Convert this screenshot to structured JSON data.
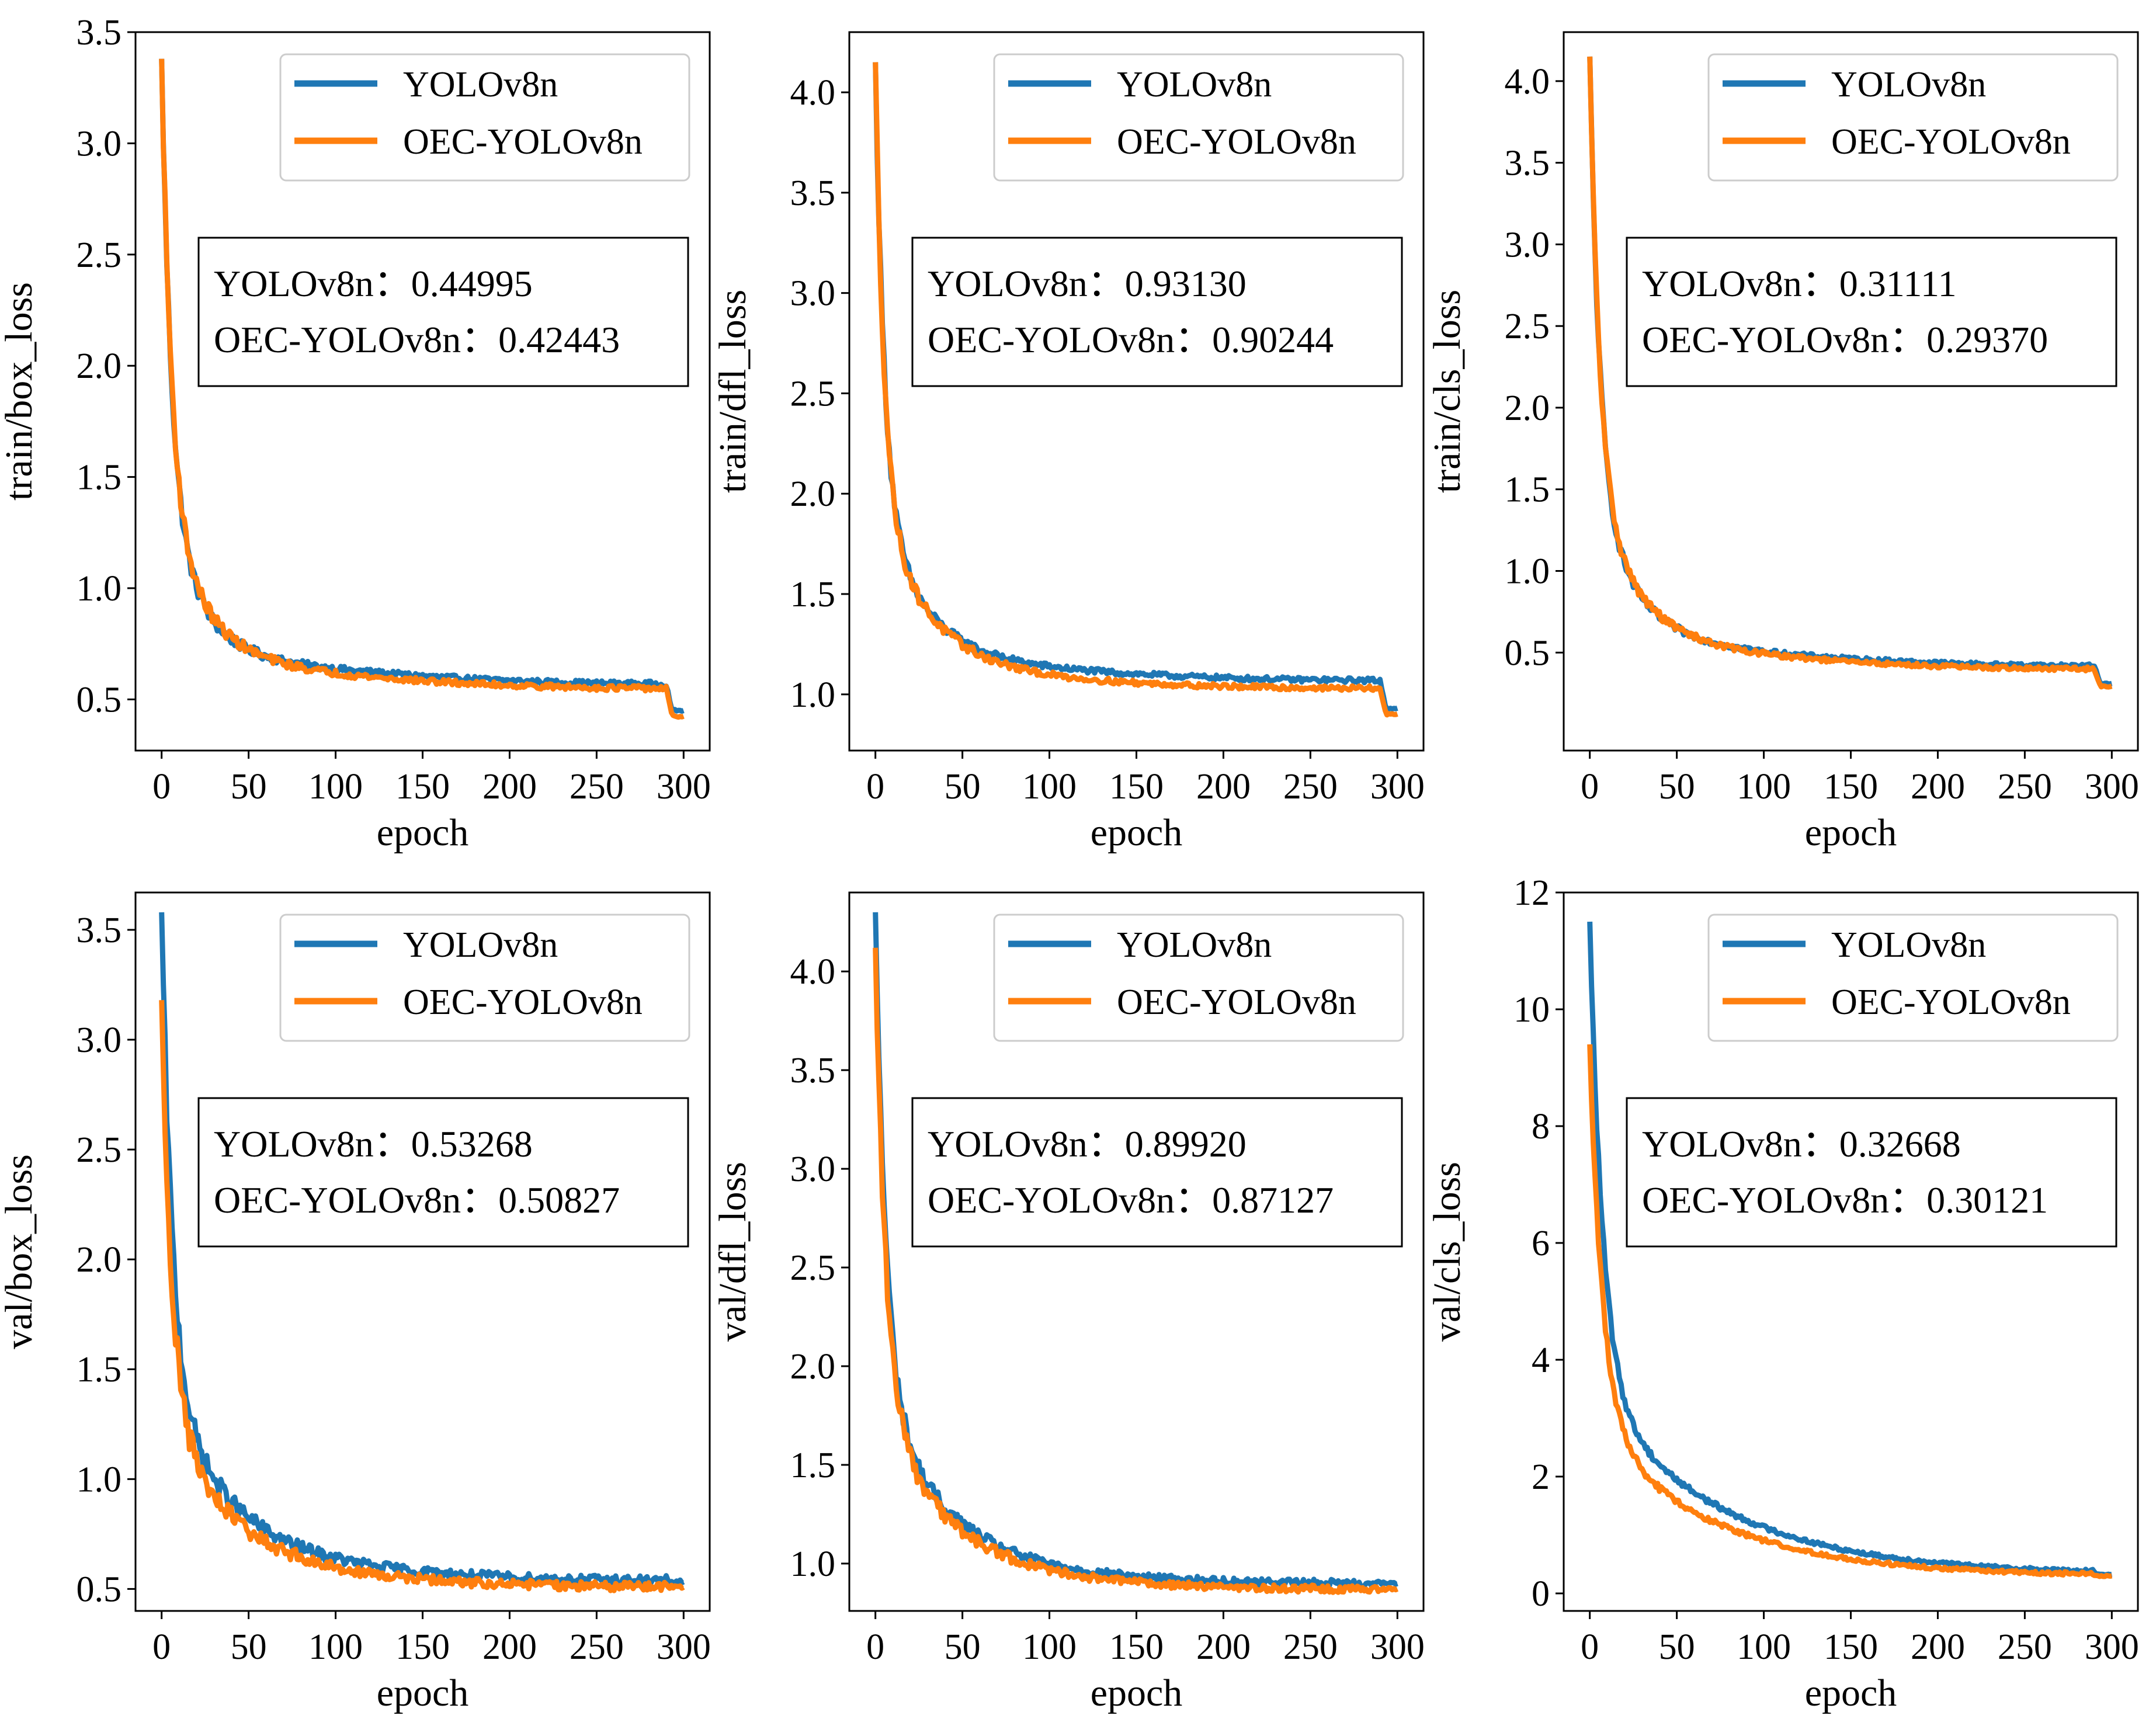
{
  "figure": {
    "description_visible": false
  },
  "legend_series": [
    {
      "name": "YOLOv8n",
      "color": "#1f77b4"
    },
    {
      "name": "OEC-YOLOv8n",
      "color": "#ff7f0e"
    }
  ],
  "chart_data": [
    {
      "type": "line",
      "title": "",
      "xlabel": "epoch",
      "ylabel": "train/box_loss",
      "xlim": [
        -15,
        315
      ],
      "ylim": [
        0.27,
        3.5
      ],
      "xticks": [
        0,
        50,
        100,
        150,
        200,
        250,
        300
      ],
      "yticks": [
        0.5,
        1.0,
        1.5,
        2.0,
        2.5,
        3.0,
        3.5
      ],
      "legend": "top-right",
      "series": [
        {
          "name": "YOLOv8n",
          "start": 3.38,
          "final": 0.44995,
          "pre_drop": 0.57,
          "mid": 0.72,
          "tail_k": 0.85,
          "tail_p": 0.55,
          "noise": 0.012
        },
        {
          "name": "OEC-YOLOv8n",
          "start": 3.38,
          "final": 0.42443,
          "pre_drop": 0.55,
          "mid": 0.69,
          "tail_k": 1.0,
          "tail_p": 0.55,
          "noise": 0.012
        }
      ],
      "annotation": {
        "lines": [
          {
            "label": "YOLOv8n：",
            "value": "0.44995"
          },
          {
            "label": "OEC-YOLOv8n：",
            "value": "0.42443"
          }
        ]
      }
    },
    {
      "type": "line",
      "title": "",
      "xlabel": "epoch",
      "ylabel": "train/dfl_loss",
      "xlim": [
        -15,
        315
      ],
      "ylim": [
        0.72,
        4.3
      ],
      "xticks": [
        0,
        50,
        100,
        150,
        200,
        250,
        300
      ],
      "yticks": [
        1.0,
        1.5,
        2.0,
        2.5,
        3.0,
        3.5,
        4.0
      ],
      "legend": "top-right",
      "series": [
        {
          "name": "YOLOv8n",
          "start": 4.15,
          "final": 0.9313,
          "pre_drop": 1.07,
          "mid": 1.2,
          "tail_k": 1.1,
          "tail_p": 0.5,
          "noise": 0.012
        },
        {
          "name": "OEC-YOLOv8n",
          "start": 4.15,
          "final": 0.90244,
          "pre_drop": 1.03,
          "mid": 1.13,
          "tail_k": 1.3,
          "tail_p": 0.5,
          "noise": 0.012
        }
      ],
      "annotation": {
        "lines": [
          {
            "label": "YOLOv8n：",
            "value": "0.93130"
          },
          {
            "label": "OEC-YOLOv8n：",
            "value": "0.90244"
          }
        ]
      }
    },
    {
      "type": "line",
      "title": "",
      "xlabel": "epoch",
      "ylabel": "train/cls_loss",
      "xlim": [
        -15,
        315
      ],
      "ylim": [
        -0.1,
        4.3
      ],
      "xticks": [
        0,
        50,
        100,
        150,
        200,
        250,
        300
      ],
      "yticks": [
        0.5,
        1.0,
        1.5,
        2.0,
        2.5,
        3.0,
        3.5,
        4.0
      ],
      "legend": "top-right",
      "series": [
        {
          "name": "YOLOv8n",
          "start": 4.15,
          "final": 0.31111,
          "pre_drop": 0.42,
          "mid": 0.6,
          "tail_k": 1.0,
          "tail_p": 0.55,
          "noise": 0.012
        },
        {
          "name": "OEC-YOLOv8n",
          "start": 4.15,
          "final": 0.2937,
          "pre_drop": 0.4,
          "mid": 0.58,
          "tail_k": 1.1,
          "tail_p": 0.55,
          "noise": 0.012
        }
      ],
      "annotation": {
        "lines": [
          {
            "label": "YOLOv8n：",
            "value": "0.31111"
          },
          {
            "label": "OEC-YOLOv8n：",
            "value": "0.29370"
          }
        ]
      }
    },
    {
      "type": "line",
      "title": "",
      "xlabel": "epoch",
      "ylabel": "val/box_loss",
      "xlim": [
        -15,
        315
      ],
      "ylim": [
        0.4,
        3.67
      ],
      "xticks": [
        0,
        50,
        100,
        150,
        200,
        250,
        300
      ],
      "yticks": [
        0.5,
        1.0,
        1.5,
        2.0,
        2.5,
        3.0,
        3.5
      ],
      "legend": "top-right",
      "series": [
        {
          "name": "YOLOv8n",
          "start": 3.58,
          "final": 0.53268,
          "pre_drop": 0.54,
          "mid": 0.66,
          "tail_k": 1.6,
          "tail_p": 0.6,
          "noise": 0.02
        },
        {
          "name": "OEC-YOLOv8n",
          "start": 3.18,
          "final": 0.50827,
          "pre_drop": 0.51,
          "mid": 0.6,
          "tail_k": 1.7,
          "tail_p": 0.6,
          "noise": 0.02
        }
      ],
      "annotation": {
        "lines": [
          {
            "label": "YOLOv8n：",
            "value": "0.53268"
          },
          {
            "label": "OEC-YOLOv8n：",
            "value": "0.50827"
          }
        ]
      }
    },
    {
      "type": "line",
      "title": "",
      "xlabel": "epoch",
      "ylabel": "val/dfl_loss",
      "xlim": [
        -15,
        315
      ],
      "ylim": [
        0.76,
        4.4
      ],
      "xticks": [
        0,
        50,
        100,
        150,
        200,
        250,
        300
      ],
      "yticks": [
        1.0,
        1.5,
        2.0,
        2.5,
        3.0,
        3.5,
        4.0
      ],
      "legend": "top-right",
      "series": [
        {
          "name": "YOLOv8n",
          "start": 4.3,
          "final": 0.8992,
          "pre_drop": 0.9,
          "mid": 0.98,
          "tail_k": 1.7,
          "tail_p": 0.6,
          "noise": 0.018
        },
        {
          "name": "OEC-YOLOv8n",
          "start": 4.12,
          "final": 0.87127,
          "pre_drop": 0.87,
          "mid": 0.93,
          "tail_k": 1.8,
          "tail_p": 0.6,
          "noise": 0.018
        }
      ],
      "annotation": {
        "lines": [
          {
            "label": "YOLOv8n：",
            "value": "0.89920"
          },
          {
            "label": "OEC-YOLOv8n：",
            "value": "0.87127"
          }
        ]
      }
    },
    {
      "type": "line",
      "title": "",
      "xlabel": "epoch",
      "ylabel": "val/cls_loss",
      "xlim": [
        -15,
        315
      ],
      "ylim": [
        -0.3,
        12.0
      ],
      "xticks": [
        0,
        50,
        100,
        150,
        200,
        250,
        300
      ],
      "yticks": [
        0,
        2,
        4,
        6,
        8,
        10,
        12
      ],
      "legend": "top-right",
      "series": [
        {
          "name": "YOLOv8n",
          "start": 11.5,
          "final": 0.32668,
          "pre_drop": 0.33,
          "mid": 0.45,
          "tail_k": 3.2,
          "tail_p": 0.75,
          "noise": 0.03
        },
        {
          "name": "OEC-YOLOv8n",
          "start": 9.4,
          "final": 0.30121,
          "pre_drop": 0.3,
          "mid": 0.42,
          "tail_k": 3.0,
          "tail_p": 0.75,
          "noise": 0.03
        }
      ],
      "annotation": {
        "lines": [
          {
            "label": "YOLOv8n：",
            "value": "0.32668"
          },
          {
            "label": "OEC-YOLOv8n：",
            "value": "0.30121"
          }
        ]
      }
    }
  ]
}
